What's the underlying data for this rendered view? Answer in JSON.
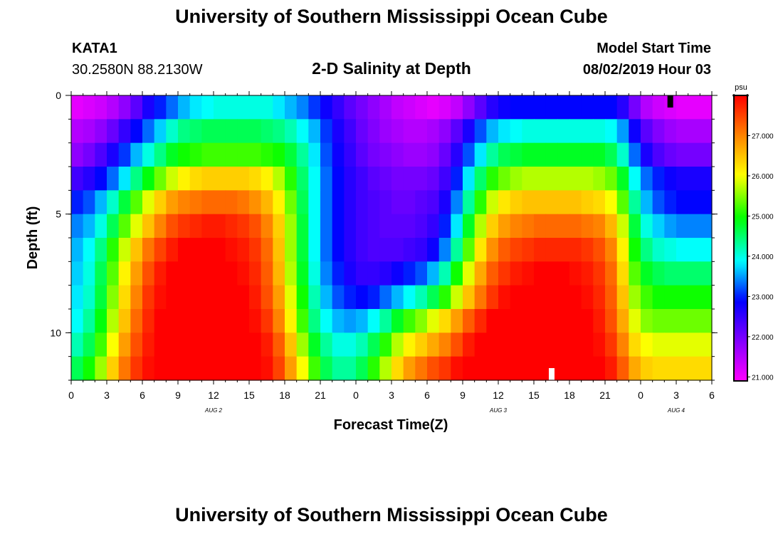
{
  "header": {
    "main_title": "University of Southern Mississippi Ocean Cube",
    "station_id": "KATA1",
    "station_coords": "30.2580N 88.2130W",
    "model_start_label": "Model Start Time",
    "model_start_value": "08/02/2019 Hour 03"
  },
  "footer": {
    "title": "University of Southern Mississippi Ocean Cube"
  },
  "chart_data": {
    "type": "heatmap",
    "title": "2-D Salinity at Depth",
    "xlabel": "Forecast Time(Z)",
    "ylabel": "Depth (ft)",
    "colorbar_unit": "psu",
    "colorbar_ticks": [
      "21.000",
      "22.000",
      "23.000",
      "24.000",
      "25.000",
      "26.000",
      "27.000"
    ],
    "colorbar_range": [
      20.9,
      28.0
    ],
    "x_range_hours": [
      0,
      54
    ],
    "y_range_ft": [
      0,
      12
    ],
    "x_tick_labels": [
      "0",
      "3",
      "6",
      "9",
      "12",
      "15",
      "18",
      "21",
      "0",
      "3",
      "6",
      "9",
      "12",
      "15",
      "18",
      "21",
      "0",
      "3",
      "6"
    ],
    "y_tick_labels": [
      "0",
      "5",
      "10"
    ],
    "date_labels": [
      {
        "label": "AUG 2",
        "hour": 12
      },
      {
        "label": "AUG 3",
        "hour": 36
      },
      {
        "label": "AUG 4",
        "hour": 51
      }
    ],
    "depth_layers_ft": [
      0.5,
      1.5,
      2.5,
      3.5,
      4.5,
      5.5,
      6.5,
      7.5,
      8.5,
      9.5,
      10.5,
      11.5
    ],
    "time_steps": 54,
    "time_markers": [
      {
        "color": "#000000",
        "hour": 50.5,
        "position": "top"
      },
      {
        "color": "#ffffff",
        "hour": 40.5,
        "position": "bottom"
      }
    ],
    "salinity_psu": [
      [
        21.1,
        21.2,
        21.3,
        21.5,
        21.8,
        22.2,
        22.7,
        23.0,
        23.3,
        23.6,
        23.8,
        23.9,
        24.0,
        24.0,
        24.0,
        24.0,
        24.0,
        23.8,
        23.6,
        23.4,
        23.1,
        22.8,
        22.5,
        22.2,
        22.0,
        21.8,
        21.6,
        21.4,
        21.3,
        21.2,
        21.1,
        21.2,
        21.4,
        21.8,
        22.2,
        22.6,
        22.8,
        22.9,
        22.9,
        22.9,
        22.9,
        22.9,
        22.9,
        22.9,
        22.9,
        22.9,
        22.6,
        22.0,
        21.5,
        21.3,
        21.2,
        21.1,
        21.1,
        21.1
      ],
      [
        21.5,
        21.6,
        21.8,
        22.1,
        22.5,
        22.9,
        23.3,
        23.7,
        24.1,
        24.4,
        24.5,
        24.6,
        24.6,
        24.6,
        24.6,
        24.6,
        24.5,
        24.4,
        24.2,
        23.9,
        23.6,
        23.1,
        22.7,
        22.4,
        22.1,
        21.9,
        21.7,
        21.6,
        21.5,
        21.5,
        21.6,
        21.8,
        22.2,
        22.7,
        23.2,
        23.6,
        23.8,
        23.9,
        24.0,
        24.0,
        24.0,
        24.0,
        24.0,
        24.0,
        24.0,
        23.9,
        23.5,
        22.8,
        22.2,
        21.9,
        21.7,
        21.6,
        21.6,
        21.6
      ],
      [
        21.8,
        22.0,
        22.3,
        22.7,
        23.1,
        23.6,
        24.0,
        24.4,
        24.8,
        25.0,
        25.1,
        25.2,
        25.2,
        25.2,
        25.2,
        25.2,
        25.1,
        25.0,
        24.7,
        24.3,
        23.8,
        23.2,
        22.8,
        22.5,
        22.2,
        22.0,
        21.9,
        21.8,
        21.7,
        21.7,
        21.8,
        22.1,
        22.6,
        23.2,
        23.8,
        24.3,
        24.6,
        24.7,
        24.8,
        24.8,
        24.8,
        24.8,
        24.8,
        24.8,
        24.8,
        24.6,
        24.1,
        23.3,
        22.7,
        22.3,
        22.1,
        22.0,
        22.0,
        22.0
      ],
      [
        22.4,
        22.6,
        22.9,
        23.3,
        23.8,
        24.4,
        24.9,
        25.4,
        25.8,
        26.1,
        26.3,
        26.4,
        26.4,
        26.4,
        26.4,
        26.3,
        26.1,
        25.7,
        25.1,
        24.5,
        23.9,
        23.3,
        22.9,
        22.6,
        22.4,
        22.2,
        22.1,
        22.0,
        22.0,
        22.0,
        22.1,
        22.4,
        23.0,
        23.8,
        24.5,
        25.1,
        25.4,
        25.6,
        25.7,
        25.7,
        25.7,
        25.7,
        25.7,
        25.7,
        25.6,
        25.4,
        24.8,
        23.9,
        23.3,
        23.0,
        22.8,
        22.7,
        22.7,
        22.7
      ],
      [
        23.0,
        23.2,
        23.6,
        24.1,
        24.7,
        25.3,
        25.9,
        26.4,
        26.8,
        27.0,
        27.1,
        27.2,
        27.2,
        27.2,
        27.1,
        26.9,
        26.6,
        26.1,
        25.4,
        24.6,
        23.9,
        23.3,
        22.9,
        22.6,
        22.4,
        22.3,
        22.2,
        22.1,
        22.1,
        22.2,
        22.3,
        22.7,
        23.4,
        24.3,
        25.1,
        25.8,
        26.2,
        26.4,
        26.5,
        26.5,
        26.5,
        26.5,
        26.5,
        26.4,
        26.3,
        26.0,
        25.3,
        24.3,
        23.6,
        23.2,
        23.0,
        22.9,
        22.9,
        22.9
      ],
      [
        23.4,
        23.6,
        24.0,
        24.6,
        25.3,
        25.9,
        26.5,
        27.0,
        27.4,
        27.6,
        27.7,
        27.8,
        27.8,
        27.7,
        27.6,
        27.4,
        27.0,
        26.4,
        25.6,
        24.7,
        23.9,
        23.3,
        22.9,
        22.6,
        22.4,
        22.3,
        22.2,
        22.2,
        22.2,
        22.3,
        22.5,
        23.0,
        23.8,
        24.8,
        25.7,
        26.4,
        26.8,
        27.0,
        27.1,
        27.2,
        27.2,
        27.2,
        27.2,
        27.1,
        27.0,
        26.6,
        25.8,
        24.7,
        24.0,
        23.7,
        23.5,
        23.4,
        23.4,
        23.4
      ],
      [
        23.6,
        23.9,
        24.4,
        25.1,
        25.8,
        26.5,
        27.1,
        27.5,
        27.8,
        28.0,
        28.0,
        28.0,
        28.0,
        27.9,
        27.8,
        27.6,
        27.2,
        26.5,
        25.6,
        24.7,
        23.9,
        23.3,
        22.9,
        22.6,
        22.4,
        22.3,
        22.3,
        22.3,
        22.4,
        22.5,
        22.8,
        23.4,
        24.3,
        25.3,
        26.2,
        26.9,
        27.3,
        27.5,
        27.6,
        27.7,
        27.7,
        27.7,
        27.7,
        27.6,
        27.4,
        27.0,
        26.1,
        25.0,
        24.4,
        24.1,
        24.0,
        23.9,
        23.9,
        23.9
      ],
      [
        23.7,
        24.0,
        24.6,
        25.3,
        26.1,
        26.8,
        27.4,
        27.8,
        28.0,
        28.0,
        28.0,
        28.0,
        28.0,
        28.0,
        27.9,
        27.7,
        27.3,
        26.6,
        25.7,
        24.8,
        24.0,
        23.4,
        23.0,
        22.7,
        22.5,
        22.5,
        22.6,
        22.8,
        23.0,
        23.2,
        23.6,
        24.2,
        25.0,
        25.9,
        26.7,
        27.3,
        27.6,
        27.8,
        27.9,
        28.0,
        28.0,
        28.0,
        27.9,
        27.8,
        27.6,
        27.2,
        26.3,
        25.3,
        24.8,
        24.6,
        24.5,
        24.5,
        24.5,
        24.5
      ],
      [
        23.8,
        24.1,
        24.7,
        25.5,
        26.3,
        27.0,
        27.6,
        27.9,
        28.0,
        28.0,
        28.0,
        28.0,
        28.0,
        28.0,
        28.0,
        27.8,
        27.4,
        26.8,
        25.9,
        25.0,
        24.2,
        23.6,
        23.2,
        23.0,
        22.9,
        23.0,
        23.3,
        23.6,
        23.9,
        24.2,
        24.6,
        25.1,
        25.8,
        26.5,
        27.1,
        27.6,
        27.9,
        28.0,
        28.0,
        28.0,
        28.0,
        28.0,
        28.0,
        27.9,
        27.7,
        27.3,
        26.5,
        25.6,
        25.2,
        25.0,
        25.0,
        25.0,
        25.0,
        25.0
      ],
      [
        23.9,
        24.3,
        24.9,
        25.7,
        26.5,
        27.2,
        27.7,
        28.0,
        28.0,
        28.0,
        28.0,
        28.0,
        28.0,
        28.0,
        28.0,
        27.9,
        27.6,
        27.0,
        26.1,
        25.2,
        24.4,
        23.9,
        23.6,
        23.5,
        23.6,
        23.9,
        24.3,
        24.8,
        25.2,
        25.5,
        25.9,
        26.3,
        26.8,
        27.3,
        27.7,
        28.0,
        28.0,
        28.0,
        28.0,
        28.0,
        28.0,
        28.0,
        28.0,
        28.0,
        27.8,
        27.4,
        26.7,
        25.9,
        25.5,
        25.4,
        25.4,
        25.4,
        25.4,
        25.4
      ],
      [
        24.2,
        24.6,
        25.2,
        26.0,
        26.8,
        27.4,
        27.8,
        28.0,
        28.0,
        28.0,
        28.0,
        28.0,
        28.0,
        28.0,
        28.0,
        28.0,
        27.8,
        27.3,
        26.5,
        25.6,
        24.8,
        24.3,
        24.0,
        24.0,
        24.2,
        24.6,
        25.1,
        25.7,
        26.1,
        26.4,
        26.7,
        27.0,
        27.4,
        27.8,
        28.0,
        28.0,
        28.0,
        28.0,
        28.0,
        28.0,
        28.0,
        28.0,
        28.0,
        28.0,
        27.9,
        27.6,
        27.0,
        26.3,
        26.0,
        25.9,
        25.9,
        25.9,
        25.9,
        25.9
      ],
      [
        24.6,
        25.0,
        25.6,
        26.4,
        27.1,
        27.6,
        27.9,
        28.0,
        28.0,
        28.0,
        28.0,
        28.0,
        28.0,
        28.0,
        28.0,
        28.0,
        27.9,
        27.5,
        26.8,
        26.0,
        25.2,
        24.6,
        24.3,
        24.3,
        24.6,
        25.1,
        25.7,
        26.3,
        26.8,
        27.1,
        27.4,
        27.6,
        27.9,
        28.0,
        28.0,
        28.0,
        28.0,
        28.0,
        28.0,
        28.0,
        28.0,
        28.0,
        28.0,
        28.0,
        28.0,
        27.8,
        27.3,
        26.7,
        26.4,
        26.3,
        26.3,
        26.3,
        26.3,
        26.3
      ]
    ]
  }
}
